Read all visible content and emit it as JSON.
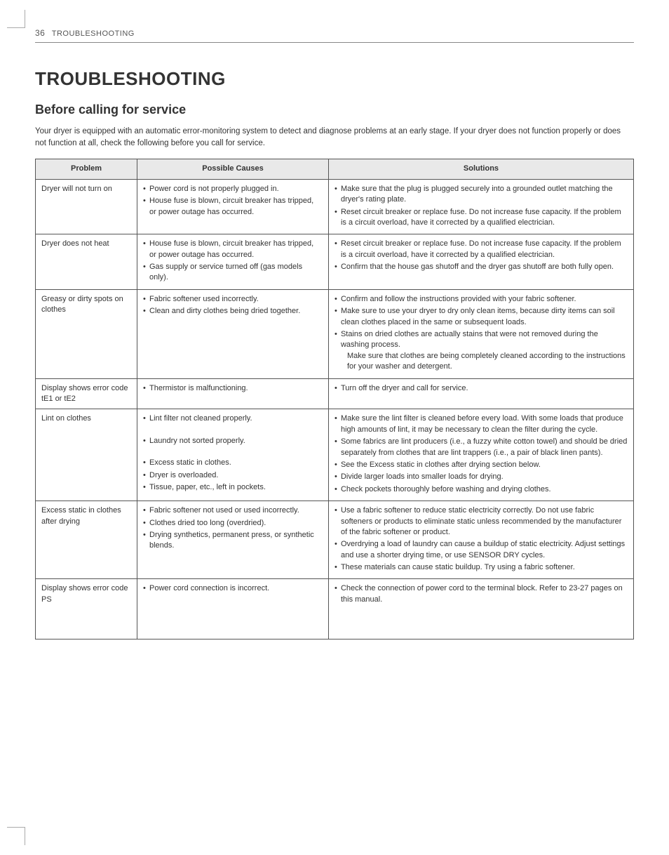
{
  "header": {
    "page_number": "36",
    "section": "TROUBLESHOOTING"
  },
  "title": "TROUBLESHOOTING",
  "subtitle": "Before calling for service",
  "intro": "Your dryer is equipped with an automatic error-monitoring system to detect and diagnose problems at an early stage. If your dryer does not function properly or does not function at all, check the following before you call for service.",
  "table": {
    "columns": [
      "Problem",
      "Possible Causes",
      "Solutions"
    ],
    "rows": [
      {
        "problem": "Dryer will not turn on",
        "causes": [
          "Power cord is not properly plugged in.",
          "House fuse is blown, circuit breaker has tripped, or power outage has occurred."
        ],
        "solutions": [
          "Make sure that the plug is plugged securely into a grounded outlet matching the dryer's rating plate.",
          "Reset circuit breaker or replace fuse. Do not increase fuse capacity. If the problem is a circuit overload, have it corrected by a qualified electrician."
        ]
      },
      {
        "problem": "Dryer does not heat",
        "causes": [
          "House fuse is blown, circuit breaker has tripped, or power outage has occurred.",
          "Gas supply or service turned off (gas models only)."
        ],
        "solutions": [
          "Reset circuit breaker or replace fuse. Do not increase fuse capacity. If the problem is a circuit overload, have it corrected by a qualified electrician.",
          "Confirm that the house gas shutoff and the dryer gas shutoff are both fully open."
        ]
      },
      {
        "problem": "Greasy or dirty spots on clothes",
        "causes": [
          "Fabric softener used incorrectly.",
          "Clean and dirty clothes being dried together."
        ],
        "solutions": [
          "Confirm and follow the instructions provided with your fabric softener.",
          "Make sure to use your dryer to dry only clean items, because dirty items can soil clean clothes placed in the same or subsequent loads.",
          "Stains on dried clothes are actually stains that were not removed during the washing process.|Make sure that clothes are being completely cleaned according to the instructions for your washer and detergent."
        ]
      },
      {
        "problem": "Display shows error code tE1 or tE2",
        "causes": [
          "Thermistor is malfunctioning."
        ],
        "solutions": [
          "Turn off the dryer and call for service."
        ]
      },
      {
        "problem": "Lint on clothes",
        "causes": [
          "Lint filter not cleaned properly.",
          "",
          "Laundry not sorted properly.",
          "",
          "Excess static in clothes.",
          "Dryer is overloaded.",
          "Tissue, paper, etc., left in pockets."
        ],
        "solutions": [
          "Make sure the lint filter is cleaned before every load. With some loads that produce high amounts of lint, it may be necessary to clean the filter during the cycle.",
          "Some fabrics are lint producers (i.e., a fuzzy white cotton towel) and should be dried separately from clothes that are lint trappers (i.e., a pair of black linen pants).",
          "See the Excess static in clothes after drying section below.",
          "Divide larger loads into smaller loads for drying.",
          "Check pockets thoroughly before washing and drying clothes."
        ]
      },
      {
        "problem": "Excess static in clothes after drying",
        "causes": [
          "Fabric softener not used or used incorrectly.",
          "Clothes dried too long (overdried).",
          "Drying synthetics, permanent press, or synthetic blends."
        ],
        "solutions": [
          "Use a fabric softener to reduce static electricity correctly. Do not use fabric softeners or products to eliminate static unless recommended by the manufacturer of the fabric softener or product.",
          "Overdrying a load of laundry can cause a buildup of static electricity. Adjust settings and use a shorter drying time, or use SENSOR DRY cycles.",
          "These materials can cause static buildup. Try using a fabric softener."
        ]
      },
      {
        "problem": "Display shows error code PS",
        "causes": [
          "Power cord connection is incorrect."
        ],
        "solutions": [
          "Check the connection of power cord to the terminal block. Refer to 23-27 pages on this manual."
        ],
        "pad": true
      }
    ]
  }
}
